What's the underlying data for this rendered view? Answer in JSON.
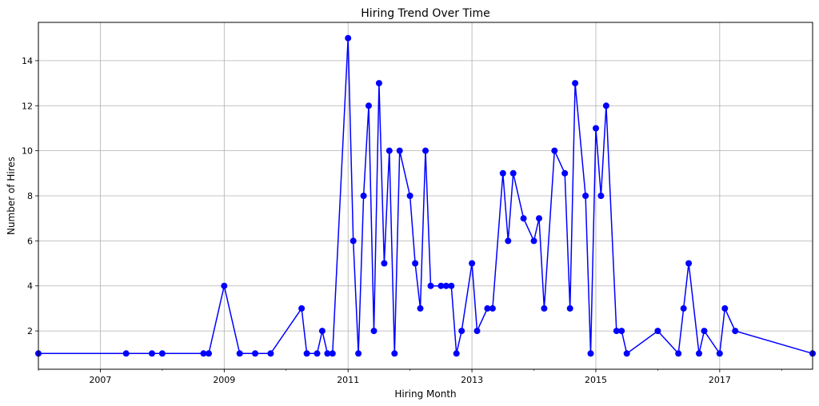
{
  "chart_data": {
    "type": "line",
    "title": "Hiring Trend Over Time",
    "xlabel": "Hiring Month",
    "ylabel": "Number of Hires",
    "x_ticks": [
      "2007",
      "2009",
      "2011",
      "2013",
      "2015",
      "2017"
    ],
    "y_ticks": [
      2,
      4,
      6,
      8,
      10,
      12,
      14
    ],
    "xlim": [
      "2006-01",
      "2018-07"
    ],
    "ylim": [
      0.3,
      15.7
    ],
    "grid": true,
    "line_color": "#0000ff",
    "marker": "circle",
    "series": [
      {
        "x": [
          "2006-01",
          "2007-06",
          "2007-11",
          "2008-01",
          "2008-09",
          "2008-10",
          "2009-01",
          "2009-04",
          "2009-07",
          "2009-10",
          "2010-04",
          "2010-05",
          "2010-07",
          "2010-08",
          "2010-09",
          "2010-10",
          "2011-01",
          "2011-02",
          "2011-03",
          "2011-04",
          "2011-05",
          "2011-06",
          "2011-07",
          "2011-08",
          "2011-09",
          "2011-10",
          "2011-11",
          "2012-01",
          "2012-02",
          "2012-03",
          "2012-04",
          "2012-05",
          "2012-07",
          "2012-08",
          "2012-09",
          "2012-10",
          "2012-11",
          "2013-01",
          "2013-02",
          "2013-04",
          "2013-05",
          "2013-07",
          "2013-08",
          "2013-09",
          "2013-11",
          "2014-01",
          "2014-02",
          "2014-03",
          "2014-05",
          "2014-07",
          "2014-08",
          "2014-09",
          "2014-11",
          "2014-12",
          "2015-01",
          "2015-02",
          "2015-03",
          "2015-05",
          "2015-06",
          "2015-07",
          "2016-01",
          "2016-05",
          "2016-06",
          "2016-07",
          "2016-09",
          "2016-10",
          "2017-01",
          "2017-02",
          "2017-04",
          "2018-07"
        ],
        "y": [
          1,
          1,
          1,
          1,
          1,
          1,
          4,
          1,
          1,
          1,
          3,
          1,
          1,
          2,
          1,
          1,
          15,
          6,
          1,
          8,
          12,
          2,
          13,
          5,
          10,
          1,
          10,
          8,
          5,
          3,
          10,
          4,
          4,
          4,
          4,
          1,
          2,
          5,
          2,
          3,
          3,
          9,
          6,
          9,
          7,
          6,
          7,
          3,
          10,
          9,
          3,
          13,
          8,
          1,
          11,
          8,
          12,
          2,
          2,
          1,
          2,
          1,
          3,
          5,
          1,
          2,
          1,
          3,
          2,
          1
        ]
      }
    ]
  }
}
